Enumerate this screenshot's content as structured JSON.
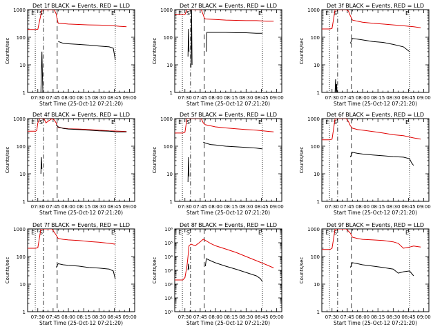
{
  "page": {
    "background": "#ffffff"
  },
  "colors": {
    "events": "#000000",
    "lld": "#e00000",
    "axes": "#000000"
  },
  "common": {
    "ylabel": "Counts/sec",
    "xlabel": "Start Time (25-Oct-12 07:21:20)",
    "xticks": [
      "07:30",
      "07:45",
      "08:00",
      "08:15",
      "08:30",
      "08:45",
      "09:00"
    ],
    "xlim_minutes": [
      0,
      105
    ],
    "xtick_minutes": [
      10,
      25,
      40,
      55,
      70,
      85,
      100
    ],
    "yscale": "log",
    "markers": [
      {
        "label": "E",
        "minute": 7.5,
        "style": "dotted"
      },
      {
        "label": "S",
        "minute": 15.5,
        "style": "dash-dot"
      },
      {
        "label": "",
        "minute": 29,
        "style": "dashed"
      },
      {
        "label": "E",
        "minute": 86,
        "style": "dotted"
      }
    ]
  },
  "chart_data": [
    {
      "type": "line",
      "title": "Det 1f BLACK = Events, RED = LLD",
      "ylim": [
        1,
        1000
      ],
      "yticks": [
        {
          "v": 1,
          "t": "1"
        },
        {
          "v": 10,
          "t": "10"
        },
        {
          "v": 100,
          "t": "100"
        },
        {
          "v": 1000,
          "t": "1000"
        }
      ],
      "series": [
        {
          "color": "#e00000",
          "x": [
            0,
            8,
            10,
            14,
            18,
            22,
            26,
            28,
            29,
            30,
            35,
            40,
            50,
            60,
            70,
            80,
            90,
            97
          ],
          "y": [
            190,
            190,
            195,
            1000,
            1000,
            1000,
            1000,
            700,
            450,
            320,
            310,
            300,
            290,
            280,
            275,
            270,
            250,
            240
          ]
        },
        {
          "color": "#000000",
          "x": [
            13,
            14,
            14.5,
            15
          ],
          "y": [
            1,
            30,
            5,
            1
          ]
        },
        {
          "color": "#000000",
          "x": [
            30,
            35,
            40,
            50,
            60,
            70,
            80,
            84,
            86
          ],
          "y": [
            70,
            60,
            58,
            55,
            52,
            48,
            45,
            40,
            15
          ]
        }
      ]
    },
    {
      "type": "line",
      "title": "Det 2f BLACK = Events, RED = LLD",
      "ylim": [
        1,
        1000
      ],
      "yticks": [
        {
          "v": 1,
          "t": "1"
        },
        {
          "v": 10,
          "t": "10"
        },
        {
          "v": 100,
          "t": "100"
        },
        {
          "v": 1000,
          "t": "1000"
        }
      ],
      "series": [
        {
          "color": "#e00000",
          "x": [
            0,
            8,
            10,
            12,
            16,
            20,
            26,
            28,
            29,
            30,
            40,
            50,
            60,
            70,
            80,
            90,
            97
          ],
          "y": [
            650,
            650,
            660,
            1000,
            1000,
            1000,
            1000,
            650,
            500,
            460,
            440,
            420,
            410,
            400,
            400,
            380,
            380
          ]
        },
        {
          "color": "#000000",
          "x": [
            13,
            13.5,
            14
          ],
          "y": [
            20,
            200,
            30
          ]
        },
        {
          "color": "#000000",
          "x": [
            16,
            16.5,
            17
          ],
          "y": [
            8,
            1000,
            10
          ]
        },
        {
          "color": "#000000",
          "x": [
            31,
            31.5,
            40,
            50,
            60,
            70,
            80,
            86
          ],
          "y": [
            30,
            150,
            150,
            150,
            145,
            145,
            140,
            140
          ]
        }
      ]
    },
    {
      "type": "line",
      "title": "Det 3f BLACK = Events, RED = LLD",
      "ylim": [
        1,
        1000
      ],
      "yticks": [
        {
          "v": 1,
          "t": "1"
        },
        {
          "v": 10,
          "t": "10"
        },
        {
          "v": 100,
          "t": "100"
        },
        {
          "v": 1000,
          "t": "1000"
        }
      ],
      "series": [
        {
          "color": "#e00000",
          "x": [
            0,
            8,
            10,
            13,
            16,
            20,
            24,
            26,
            28,
            30,
            35,
            40,
            50,
            60,
            70,
            80,
            90,
            97
          ],
          "y": [
            200,
            200,
            210,
            1000,
            1000,
            1000,
            1000,
            900,
            600,
            420,
            380,
            350,
            320,
            300,
            280,
            260,
            240,
            220
          ]
        },
        {
          "color": "#000000",
          "x": [
            13,
            13.5,
            14,
            14.5,
            15
          ],
          "y": [
            1,
            3,
            1,
            2,
            1
          ]
        },
        {
          "color": "#000000",
          "x": [
            28,
            30,
            35,
            40,
            50,
            60,
            70,
            80,
            86
          ],
          "y": [
            60,
            90,
            85,
            80,
            70,
            65,
            55,
            45,
            30
          ]
        }
      ]
    },
    {
      "type": "line",
      "title": "Det 4f BLACK = Events, RED = LLD",
      "ylim": [
        1,
        1000
      ],
      "yticks": [
        {
          "v": 1,
          "t": "1"
        },
        {
          "v": 10,
          "t": "10"
        },
        {
          "v": 100,
          "t": "100"
        },
        {
          "v": 1000,
          "t": "1000"
        }
      ],
      "series": [
        {
          "color": "#e00000",
          "x": [
            0,
            8,
            9,
            10,
            12,
            14,
            16,
            18,
            20,
            24,
            26,
            28,
            29,
            30,
            35,
            40,
            50,
            60,
            70,
            80,
            90,
            97
          ],
          "y": [
            350,
            350,
            380,
            700,
            1000,
            1000,
            1000,
            700,
            800,
            1000,
            900,
            700,
            550,
            480,
            450,
            430,
            420,
            400,
            380,
            360,
            350,
            340
          ]
        },
        {
          "color": "#000000",
          "x": [
            13,
            13.5,
            14
          ],
          "y": [
            10,
            40,
            15
          ]
        },
        {
          "color": "#000000",
          "x": [
            28,
            30,
            35,
            40,
            50,
            60,
            70,
            80,
            84,
            86,
            90,
            97
          ],
          "y": [
            600,
            500,
            440,
            420,
            400,
            380,
            360,
            350,
            340,
            330,
            330,
            330
          ]
        }
      ]
    },
    {
      "type": "line",
      "title": "Det 5f BLACK = Events, RED = LLD",
      "ylim": [
        1,
        1000
      ],
      "yticks": [
        {
          "v": 1,
          "t": "1"
        },
        {
          "v": 10,
          "t": "10"
        },
        {
          "v": 100,
          "t": "100"
        },
        {
          "v": 1000,
          "t": "1000"
        }
      ],
      "series": [
        {
          "color": "#e00000",
          "x": [
            0,
            8,
            10,
            12,
            16,
            20,
            26,
            28,
            30,
            35,
            40,
            50,
            60,
            70,
            80,
            90,
            97
          ],
          "y": [
            300,
            300,
            320,
            1000,
            1000,
            1000,
            1000,
            700,
            600,
            550,
            500,
            460,
            430,
            400,
            380,
            350,
            330
          ]
        },
        {
          "color": "#000000",
          "x": [
            13,
            13.5,
            14
          ],
          "y": [
            5,
            40,
            8
          ]
        },
        {
          "color": "#000000",
          "x": [
            28,
            30,
            35,
            40,
            50,
            60,
            70,
            80,
            86
          ],
          "y": [
            140,
            130,
            115,
            110,
            100,
            95,
            90,
            85,
            80
          ]
        }
      ]
    },
    {
      "type": "line",
      "title": "Det 6f BLACK = Events, RED = LLD",
      "ylim": [
        1,
        1000
      ],
      "yticks": [
        {
          "v": 1,
          "t": "1"
        },
        {
          "v": 10,
          "t": "10"
        },
        {
          "v": 100,
          "t": "100"
        },
        {
          "v": 1000,
          "t": "1000"
        }
      ],
      "series": [
        {
          "color": "#e00000",
          "x": [
            0,
            8,
            10,
            13,
            16,
            20,
            24,
            26,
            28,
            30,
            35,
            40,
            50,
            60,
            70,
            80,
            90,
            97
          ],
          "y": [
            170,
            170,
            180,
            1000,
            1000,
            1000,
            1000,
            800,
            550,
            450,
            400,
            380,
            340,
            300,
            260,
            240,
            200,
            180
          ]
        },
        {
          "color": "#000000",
          "x": [
            28,
            30,
            35,
            40,
            50,
            60,
            70,
            80,
            86,
            88,
            90
          ],
          "y": [
            40,
            60,
            55,
            52,
            48,
            45,
            42,
            40,
            35,
            25,
            20
          ]
        }
      ]
    },
    {
      "type": "line",
      "title": "Det 7f BLACK = Events, RED = LLD",
      "ylim": [
        1,
        1000
      ],
      "yticks": [
        {
          "v": 1,
          "t": "1"
        },
        {
          "v": 10,
          "t": "10"
        },
        {
          "v": 100,
          "t": "100"
        },
        {
          "v": 1000,
          "t": "1000"
        }
      ],
      "series": [
        {
          "color": "#e00000",
          "x": [
            0,
            8,
            10,
            13,
            16,
            20,
            24,
            28,
            30,
            35,
            40,
            50,
            60,
            70,
            80,
            86
          ],
          "y": [
            200,
            200,
            210,
            1000,
            1000,
            1000,
            1000,
            600,
            450,
            420,
            400,
            380,
            350,
            330,
            300,
            280
          ]
        },
        {
          "color": "#000000",
          "x": [
            28,
            30,
            35,
            40,
            50,
            60,
            70,
            80,
            84,
            86
          ],
          "y": [
            40,
            55,
            50,
            48,
            45,
            40,
            38,
            35,
            30,
            15
          ]
        }
      ]
    },
    {
      "type": "line",
      "title": "Det 8f BLACK = Events, RED = LLD",
      "ylim": [
        1,
        1000000
      ],
      "yticks": [
        {
          "v": 1,
          "t": "10⁰"
        },
        {
          "v": 10,
          "t": "10¹"
        },
        {
          "v": 100,
          "t": "10²"
        },
        {
          "v": 1000,
          "t": "10³"
        },
        {
          "v": 10000,
          "t": "10⁴"
        },
        {
          "v": 100000,
          "t": "10⁵"
        },
        {
          "v": 1000000,
          "t": "10⁶"
        }
      ],
      "series": [
        {
          "color": "#e00000",
          "x": [
            0,
            8,
            10,
            12,
            13,
            14,
            16,
            20,
            24,
            28,
            30,
            35,
            40,
            50,
            60,
            70,
            80,
            90,
            97
          ],
          "y": [
            200,
            200,
            300,
            2000,
            10000,
            60000,
            80000,
            60000,
            100000,
            180000,
            150000,
            90000,
            60000,
            35000,
            20000,
            10000,
            5000,
            2500,
            1500
          ]
        },
        {
          "color": "#000000",
          "x": [
            13,
            13.5,
            14
          ],
          "y": [
            1000,
            3000,
            1200
          ]
        },
        {
          "color": "#000000",
          "x": [
            30,
            31,
            35,
            40,
            50,
            60,
            70,
            80,
            84,
            86
          ],
          "y": [
            2000,
            7000,
            5000,
            3500,
            2000,
            1200,
            700,
            400,
            250,
            150
          ]
        }
      ]
    },
    {
      "type": "line",
      "title": "Det 9f BLACK = Events, RED = LLD",
      "ylim": [
        1,
        1000
      ],
      "yticks": [
        {
          "v": 1,
          "t": "1"
        },
        {
          "v": 10,
          "t": "10"
        },
        {
          "v": 100,
          "t": "100"
        },
        {
          "v": 1000,
          "t": "1000"
        }
      ],
      "series": [
        {
          "color": "#e00000",
          "x": [
            0,
            8,
            10,
            13,
            16,
            20,
            24,
            28,
            30,
            35,
            40,
            50,
            60,
            70,
            75,
            80,
            86,
            90,
            97
          ],
          "y": [
            180,
            180,
            200,
            1000,
            1000,
            1000,
            1000,
            700,
            500,
            450,
            420,
            400,
            380,
            340,
            300,
            200,
            220,
            240,
            220
          ]
        },
        {
          "color": "#000000",
          "x": [
            28,
            30,
            35,
            40,
            50,
            60,
            70,
            75,
            80,
            86,
            90
          ],
          "y": [
            40,
            60,
            55,
            50,
            45,
            40,
            35,
            25,
            28,
            30,
            20
          ]
        }
      ]
    }
  ]
}
